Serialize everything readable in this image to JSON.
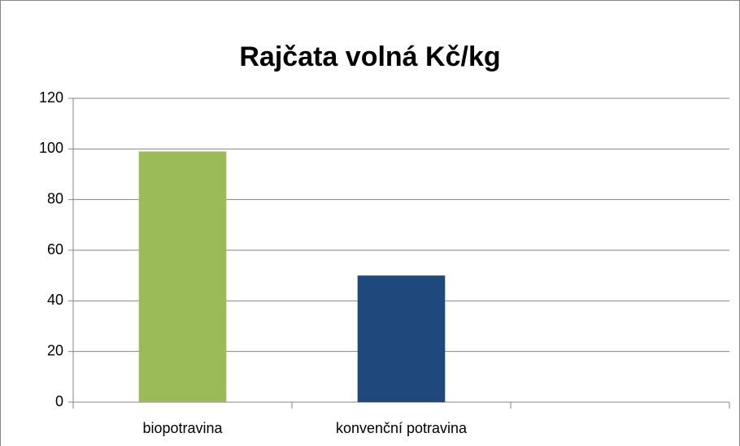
{
  "chart_data": {
    "type": "bar",
    "title": "Rajčata volná Kč/kg",
    "categories": [
      "biopotravina",
      "konvenční potravina",
      null
    ],
    "values": [
      99,
      50,
      null
    ],
    "colors": [
      "#9bbb59",
      "#1f497d"
    ],
    "ylim": [
      0,
      120
    ],
    "yticks": [
      0,
      20,
      40,
      60,
      80,
      100,
      120
    ],
    "grid": true
  }
}
